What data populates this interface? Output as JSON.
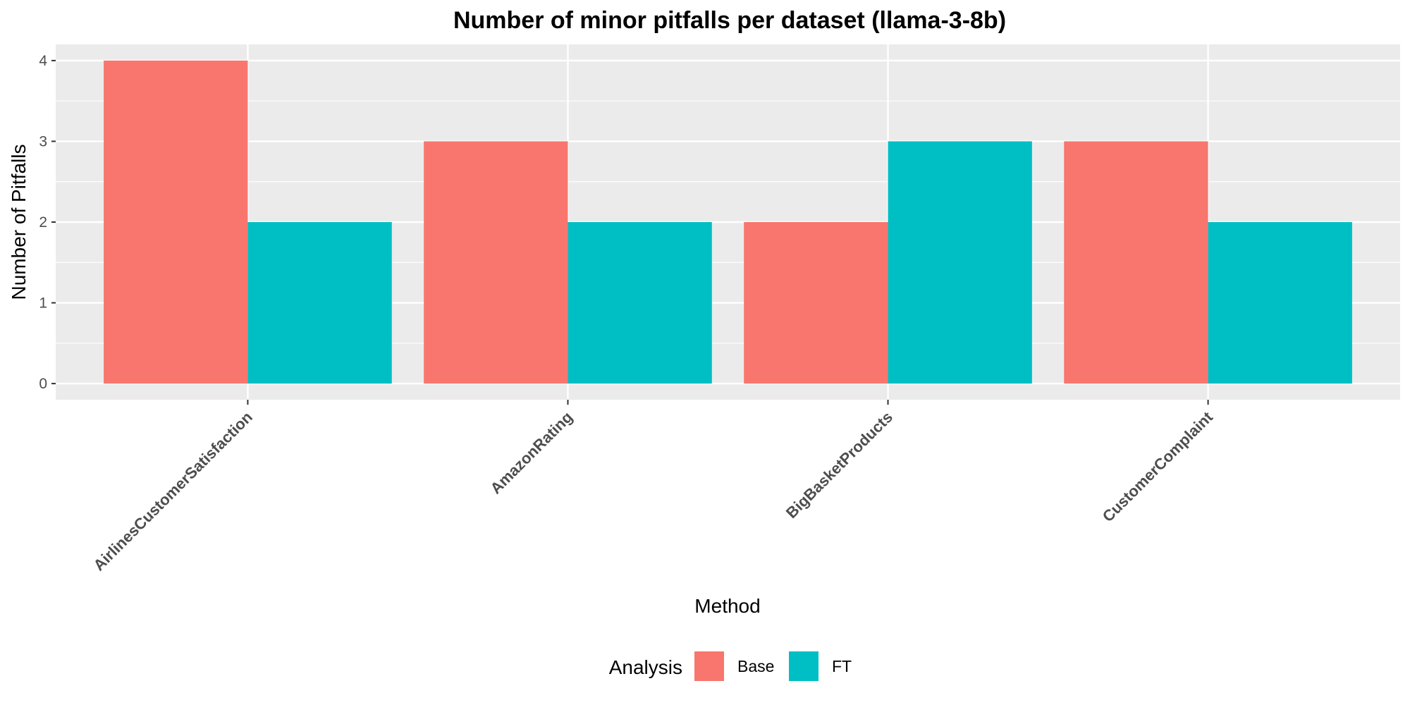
{
  "chart_data": {
    "type": "bar",
    "title": "Number of minor pitfalls per dataset (llama-3-8b)",
    "xlabel": "Method",
    "ylabel": "Number of Pitfalls",
    "categories": [
      "AirlinesCustomerSatisfaction",
      "AmazonRating",
      "BigBasketProducts",
      "CustomerComplaint"
    ],
    "series": [
      {
        "name": "Base",
        "color": "#F8766D",
        "values": [
          4,
          3,
          2,
          3
        ]
      },
      {
        "name": "FT",
        "color": "#00BFC4",
        "values": [
          2,
          2,
          3,
          2
        ]
      }
    ],
    "ylim": [
      -0.2,
      4.2
    ],
    "yticks": [
      "0",
      "1",
      "2",
      "3",
      "4"
    ],
    "grid": true,
    "legend": {
      "title": "Analysis",
      "placement": "bottom"
    },
    "panel_background": "#EBEBEB"
  }
}
